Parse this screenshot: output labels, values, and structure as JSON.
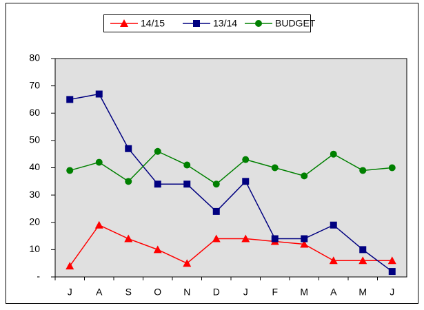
{
  "chart_data": {
    "type": "line",
    "categories": [
      "J",
      "A",
      "S",
      "O",
      "N",
      "D",
      "J",
      "F",
      "M",
      "A",
      "M",
      "J"
    ],
    "series": [
      {
        "name": "14/15",
        "color": "#ff0000",
        "marker": "triangle",
        "values": [
          4,
          19,
          14,
          10,
          5,
          14,
          14,
          13,
          12,
          6,
          6,
          6
        ]
      },
      {
        "name": "13/14",
        "color": "#000080",
        "marker": "square",
        "values": [
          65,
          67,
          47,
          34,
          34,
          24,
          35,
          14,
          14,
          19,
          10,
          2
        ]
      },
      {
        "name": "BUDGET",
        "color": "#008000",
        "marker": "circle",
        "values": [
          39,
          42,
          35,
          46,
          41,
          34,
          43,
          40,
          37,
          45,
          39,
          40
        ]
      }
    ],
    "ylim": [
      0,
      80
    ],
    "yticks": [
      {
        "value": 0,
        "label": "-"
      },
      10,
      20,
      30,
      40,
      50,
      60,
      70,
      80
    ],
    "legend": "top"
  }
}
